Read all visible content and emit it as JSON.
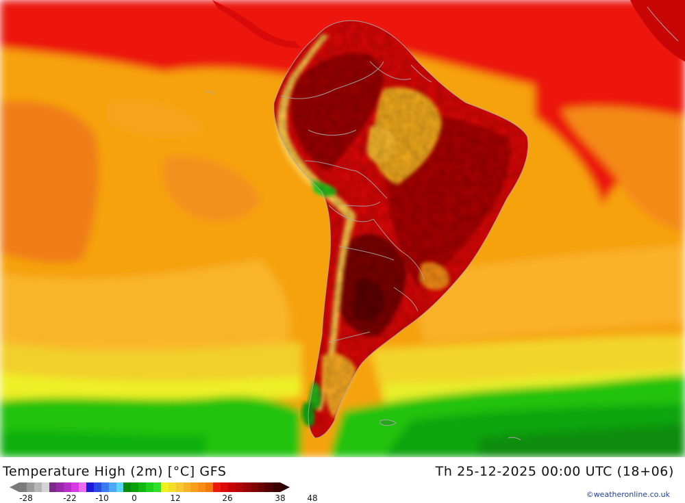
{
  "map": {
    "region": "South America",
    "product": "Temperature High (2m) [°C] GFS",
    "colors": {
      "ocean_warm": "#e8000a",
      "ocean_orange": "#f7a10a",
      "ocean_light_orange": "#f9b830",
      "ocean_yellow": "#f4e82a",
      "ocean_green": "#1fc00a",
      "ocean_dark_green": "#0a9a0a",
      "land_hot": "#8e0000",
      "land_very_hot": "#6c0000",
      "land_warm": "#d40000",
      "andes": "#f6c64a",
      "borders": "#a8a8a8"
    }
  },
  "footer": {
    "title": "Temperature High (2m) [°C] GFS",
    "datetime": "Th 25-12-2025 00:00 UTC (18+06)",
    "credit": "©weatheronline.co.uk"
  },
  "legend": {
    "swatches": [
      "#7d7d7d",
      "#9a9a9a",
      "#b6b6b6",
      "#d4d4d4",
      "#7a2a8a",
      "#9a2aaa",
      "#b92ec8",
      "#d63ae2",
      "#ea6af0",
      "#1a1ad8",
      "#2a4ae6",
      "#3a7af0",
      "#4aa8f6",
      "#5ad6fa",
      "#0a8a0a",
      "#0aa00a",
      "#12b812",
      "#1ed01e",
      "#30e030",
      "#f0f01e",
      "#f4dc2a",
      "#f6c830",
      "#f8b428",
      "#f8a01e",
      "#f88c14",
      "#f2780a",
      "#ec1a0a",
      "#dc0a0a",
      "#c80000",
      "#b00000",
      "#980000",
      "#800000",
      "#680000",
      "#500000",
      "#380000"
    ],
    "ticks": [
      "-28",
      "-22",
      "-10",
      "0",
      "12",
      "26",
      "38",
      "48"
    ]
  }
}
